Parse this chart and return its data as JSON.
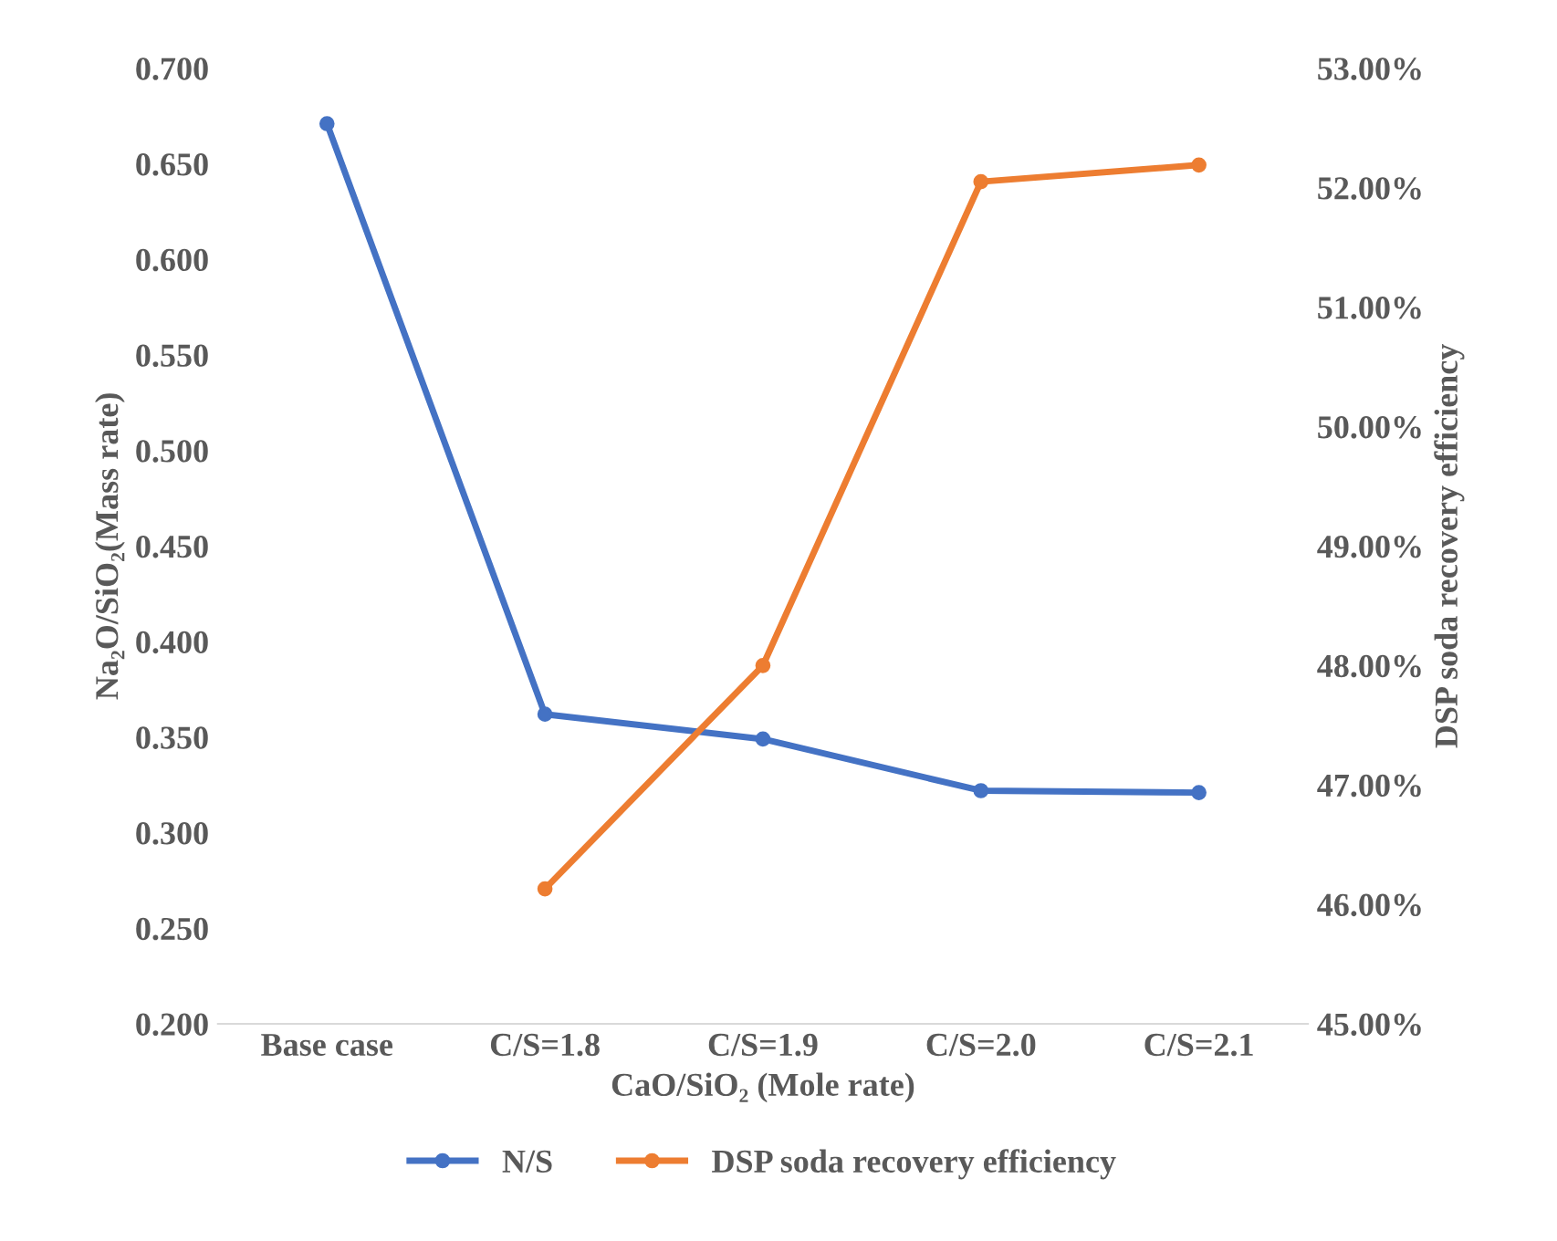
{
  "chart_data": {
    "type": "line",
    "xlabel": "CaO/SiO₂ (Mole rate)",
    "ylabel": "Na₂O/SiO₂(Mass rate)",
    "y2label": "DSP soda recovery efficiency",
    "categories": [
      "Base case",
      "C/S=1.8",
      "C/S=1.9",
      "C/S=2.0",
      "C/S=2.1"
    ],
    "series": [
      {
        "name": "N/S",
        "color": "#4472c4",
        "values": [
          0.671,
          0.362,
          0.349,
          0.322,
          0.321
        ]
      },
      {
        "name": "DSP soda recovery efficiency",
        "color": "#ed7d31",
        "axis": "y2",
        "values": [
          null,
          46.13,
          48.0,
          52.05,
          52.19
        ]
      }
    ],
    "ylim": [
      0.2,
      0.7
    ],
    "yticks": [
      {
        "value": 0.2,
        "label": "0.200"
      },
      {
        "value": 0.25,
        "label": "0.250"
      },
      {
        "value": 0.3,
        "label": "0.300"
      },
      {
        "value": 0.35,
        "label": "0.350"
      },
      {
        "value": 0.4,
        "label": "0.400"
      },
      {
        "value": 0.45,
        "label": "0.450"
      },
      {
        "value": 0.5,
        "label": "0.500"
      },
      {
        "value": 0.55,
        "label": "0.550"
      },
      {
        "value": 0.6,
        "label": "0.600"
      },
      {
        "value": 0.65,
        "label": "0.650"
      },
      {
        "value": 0.7,
        "label": "0.700"
      }
    ],
    "y2lim": [
      45,
      53
    ],
    "y2ticks": [
      {
        "value": 45,
        "label": "45.00%"
      },
      {
        "value": 46,
        "label": "46.00%"
      },
      {
        "value": 47,
        "label": "47.00%"
      },
      {
        "value": 48,
        "label": "48.00%"
      },
      {
        "value": 49,
        "label": "49.00%"
      },
      {
        "value": 50,
        "label": "50.00%"
      },
      {
        "value": 51,
        "label": "51.00%"
      },
      {
        "value": 52,
        "label": "52.00%"
      },
      {
        "value": 53,
        "label": "53.00%"
      }
    ],
    "grid": false,
    "legend": "bottom",
    "marker": "circle",
    "line_style": "solid"
  }
}
